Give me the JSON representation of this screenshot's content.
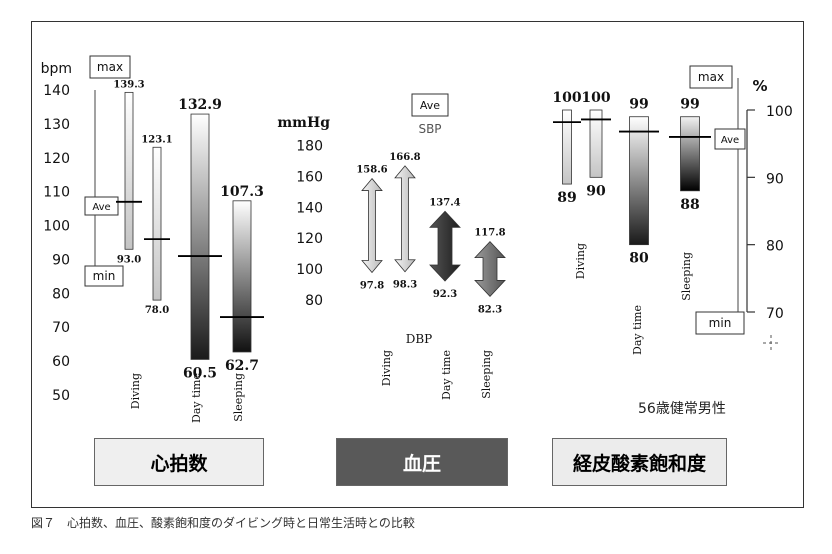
{
  "caption": "図７　心拍数、血圧、酸素飽和度のダイビング時と日常生活時との比較",
  "note": "56歳健常男性",
  "panels": {
    "hr": "心拍数",
    "bp": "血圧",
    "spo2": "経皮酸素飽和度"
  },
  "colors": {
    "hr_panel_bg": "#efefef",
    "bp_panel_bg": "#595959",
    "spo2_panel_bg": "#ececec",
    "bp_panel_text": "#ffffff",
    "dark_text": "#111111"
  },
  "chart_data": [
    {
      "type": "bar",
      "panel": "心拍数",
      "ylabel": "bpm",
      "yticks": [
        50,
        60,
        70,
        80,
        90,
        100,
        110,
        120,
        130,
        140
      ],
      "ylim": [
        50,
        140
      ],
      "legend": {
        "max": "max",
        "ave": "Ave",
        "min": "min"
      },
      "categories": [
        "Diving",
        "Day time",
        "Sleeping"
      ],
      "series": [
        {
          "name": "Diving",
          "values": {
            "max": 139.3,
            "min": 93.0,
            "ave": 107
          }
        },
        {
          "name": "Diving",
          "values": {
            "max": 123.1,
            "min": 78.0,
            "ave": 96
          }
        },
        {
          "name": "Day time",
          "values": {
            "max": 132.9,
            "min": 60.5,
            "ave": 91
          }
        },
        {
          "name": "Sleeping",
          "values": {
            "max": 107.3,
            "min": 62.7,
            "ave": 73
          }
        }
      ],
      "labels": {
        "max": [
          "139.3",
          "123.1",
          "132.9",
          "107.3"
        ],
        "min": [
          "93.0",
          "78.0",
          "60.5",
          "62.7"
        ]
      }
    },
    {
      "type": "bar",
      "panel": "血圧",
      "ylabel": "mmHg",
      "yticks": [
        80,
        100,
        120,
        140,
        160,
        180
      ],
      "ylim": [
        80,
        180
      ],
      "legend": {
        "ave": "Ave",
        "sbp": "SBP",
        "dbp": "DBP"
      },
      "categories": [
        "Diving",
        "Day time",
        "Sleeping"
      ],
      "series": [
        {
          "name": "Diving",
          "values": {
            "sbp": 158.6,
            "dbp": 97.8
          }
        },
        {
          "name": "Diving",
          "values": {
            "sbp": 166.8,
            "dbp": 98.3
          }
        },
        {
          "name": "Day time",
          "values": {
            "sbp": 137.4,
            "dbp": 92.3
          }
        },
        {
          "name": "Sleeping",
          "values": {
            "sbp": 117.8,
            "dbp": 82.3
          }
        }
      ],
      "labels": {
        "sbp": [
          "158.6",
          "166.8",
          "137.4",
          "117.8"
        ],
        "dbp": [
          "97.8",
          "98.3",
          "92.3",
          "82.3"
        ]
      }
    },
    {
      "type": "bar",
      "panel": "経皮酸素飽和度",
      "ylabel": "%",
      "yticks": [
        70,
        80,
        90,
        100
      ],
      "ylim": [
        70,
        100
      ],
      "legend": {
        "max": "max",
        "ave": "Ave",
        "min": "min"
      },
      "categories": [
        "Diving",
        "Day time",
        "Sleeping"
      ],
      "series": [
        {
          "name": "Diving",
          "values": {
            "max": 100,
            "min": 89,
            "ave": 98.2
          }
        },
        {
          "name": "Diving",
          "values": {
            "max": 100,
            "min": 90,
            "ave": 98.6
          }
        },
        {
          "name": "Day time",
          "values": {
            "max": 99,
            "min": 80,
            "ave": 96.8
          }
        },
        {
          "name": "Sleeping",
          "values": {
            "max": 99,
            "min": 88,
            "ave": 96
          }
        }
      ],
      "labels": {
        "max": [
          "100",
          "100",
          "99",
          "99"
        ],
        "min": [
          "89",
          "90",
          "80",
          "88"
        ]
      }
    }
  ]
}
